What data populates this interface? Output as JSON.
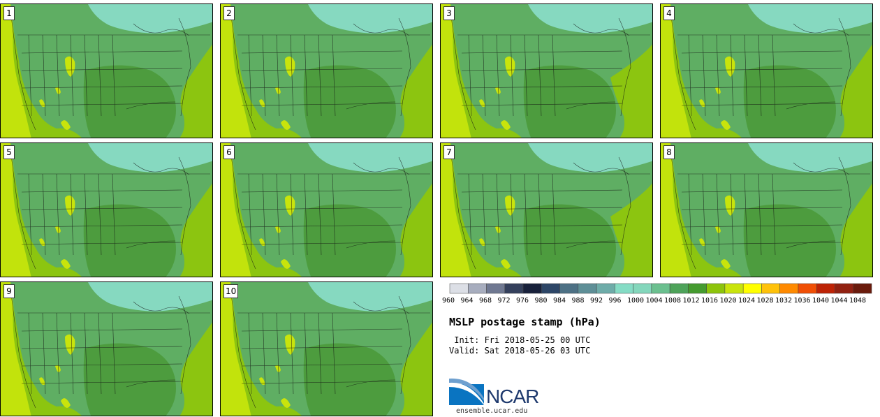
{
  "panels": [
    {
      "label": "1"
    },
    {
      "label": "2"
    },
    {
      "label": "3"
    },
    {
      "label": "4"
    },
    {
      "label": "5"
    },
    {
      "label": "6"
    },
    {
      "label": "7"
    },
    {
      "label": "8"
    },
    {
      "label": "9"
    },
    {
      "label": "10"
    }
  ],
  "colorbar": {
    "colors": [
      "#dcdfe6",
      "#a7adbe",
      "#6f7891",
      "#34405c",
      "#18213b",
      "#2d4667",
      "#4d7185",
      "#5e8f97",
      "#6eaca9",
      "#85dcc5",
      "#84d7bc",
      "#6bc08f",
      "#4ea35a",
      "#459b2f",
      "#8dc40b",
      "#c9e40c",
      "#ffff00",
      "#ffc20a",
      "#ff8a00",
      "#f04f05",
      "#bd2306",
      "#912111",
      "#6a1b0c"
    ],
    "ticks": [
      "960",
      "964",
      "968",
      "972",
      "976",
      "980",
      "984",
      "988",
      "992",
      "996",
      "1000",
      "1004",
      "1008",
      "1012",
      "1016",
      "1020",
      "1024",
      "1028",
      "1032",
      "1036",
      "1040",
      "1044",
      "1048"
    ]
  },
  "title": "MSLP postage stamp (hPa)",
  "init_text": " Init: Fri 2018-05-25 00 UTC",
  "valid_text": "Valid: Sat 2018-05-26 03 UTC",
  "logo": {
    "text": "NCAR",
    "url": "ensemble.ucar.edu"
  },
  "map_colors": {
    "ocean": "#8cc510",
    "pacific": "#c2e30c",
    "land_mid": "#5fae63",
    "land_dark": "#4d9c3e",
    "north": "#86d9c0",
    "rockies": "#c9e40c",
    "lines": "#111111"
  }
}
